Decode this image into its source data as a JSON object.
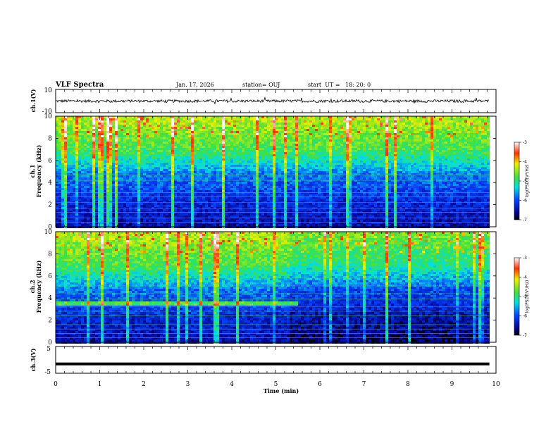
{
  "header": {
    "title": "VLF Spectra",
    "date": "Jan. 17, 2026",
    "station": "station= OUJ",
    "start": "start  UT =   18: 20: 0"
  },
  "chart_data": [
    {
      "type": "line",
      "panel": "ch1-waveform",
      "ylabel": "ch.1(V)",
      "ylim": [
        -10,
        10
      ],
      "yticks": [
        "10",
        "-10"
      ],
      "x": [
        0,
        10
      ],
      "description_values": {
        "baseline": 0,
        "amplitude_typical": 1.2
      }
    },
    {
      "type": "heatmap",
      "panel": "ch1-spectrogram",
      "ylabel_top": "ch.1",
      "ylabel": "Frequency (kHz)",
      "ylim": [
        0,
        10
      ],
      "yticks": [
        "0",
        "2",
        "4",
        "6",
        "8",
        "10"
      ],
      "xlim": [
        0,
        9.85
      ],
      "colorbar": {
        "label": "log(PSD)(V²/Hz)",
        "range": [
          -7,
          -3
        ],
        "ticks": [
          "-3",
          "-4",
          "-5",
          "-6",
          "-7"
        ]
      }
    },
    {
      "type": "heatmap",
      "panel": "ch2-spectrogram",
      "ylabel_top": "ch.2",
      "ylabel": "Frequency (kHz)",
      "ylim": [
        0,
        10
      ],
      "yticks": [
        "0",
        "2",
        "4",
        "6",
        "8",
        "10"
      ],
      "xlim": [
        0,
        9.85
      ],
      "band_until_min": 5.45,
      "band_freq_khz": 3.5,
      "colorbar": {
        "label": "log(PSD)(V²/Hz)",
        "range": [
          -7,
          -3
        ],
        "ticks": [
          "-3",
          "-4",
          "-5",
          "-6",
          "-7"
        ]
      }
    },
    {
      "type": "line",
      "panel": "ch3-waveform",
      "ylabel": "ch.3(V)",
      "ylim": [
        -5,
        5
      ],
      "yticks": [
        "5",
        "-5"
      ],
      "values_constant": -1.5,
      "xlim": [
        0,
        9.85
      ]
    }
  ],
  "xaxis": {
    "label": "Time (min)",
    "ticks": [
      "0",
      "1",
      "2",
      "3",
      "4",
      "5",
      "6",
      "7",
      "8",
      "9",
      "10"
    ],
    "range": [
      0,
      10
    ]
  },
  "colors": {
    "line": "#000000",
    "background": "#ffffff"
  }
}
